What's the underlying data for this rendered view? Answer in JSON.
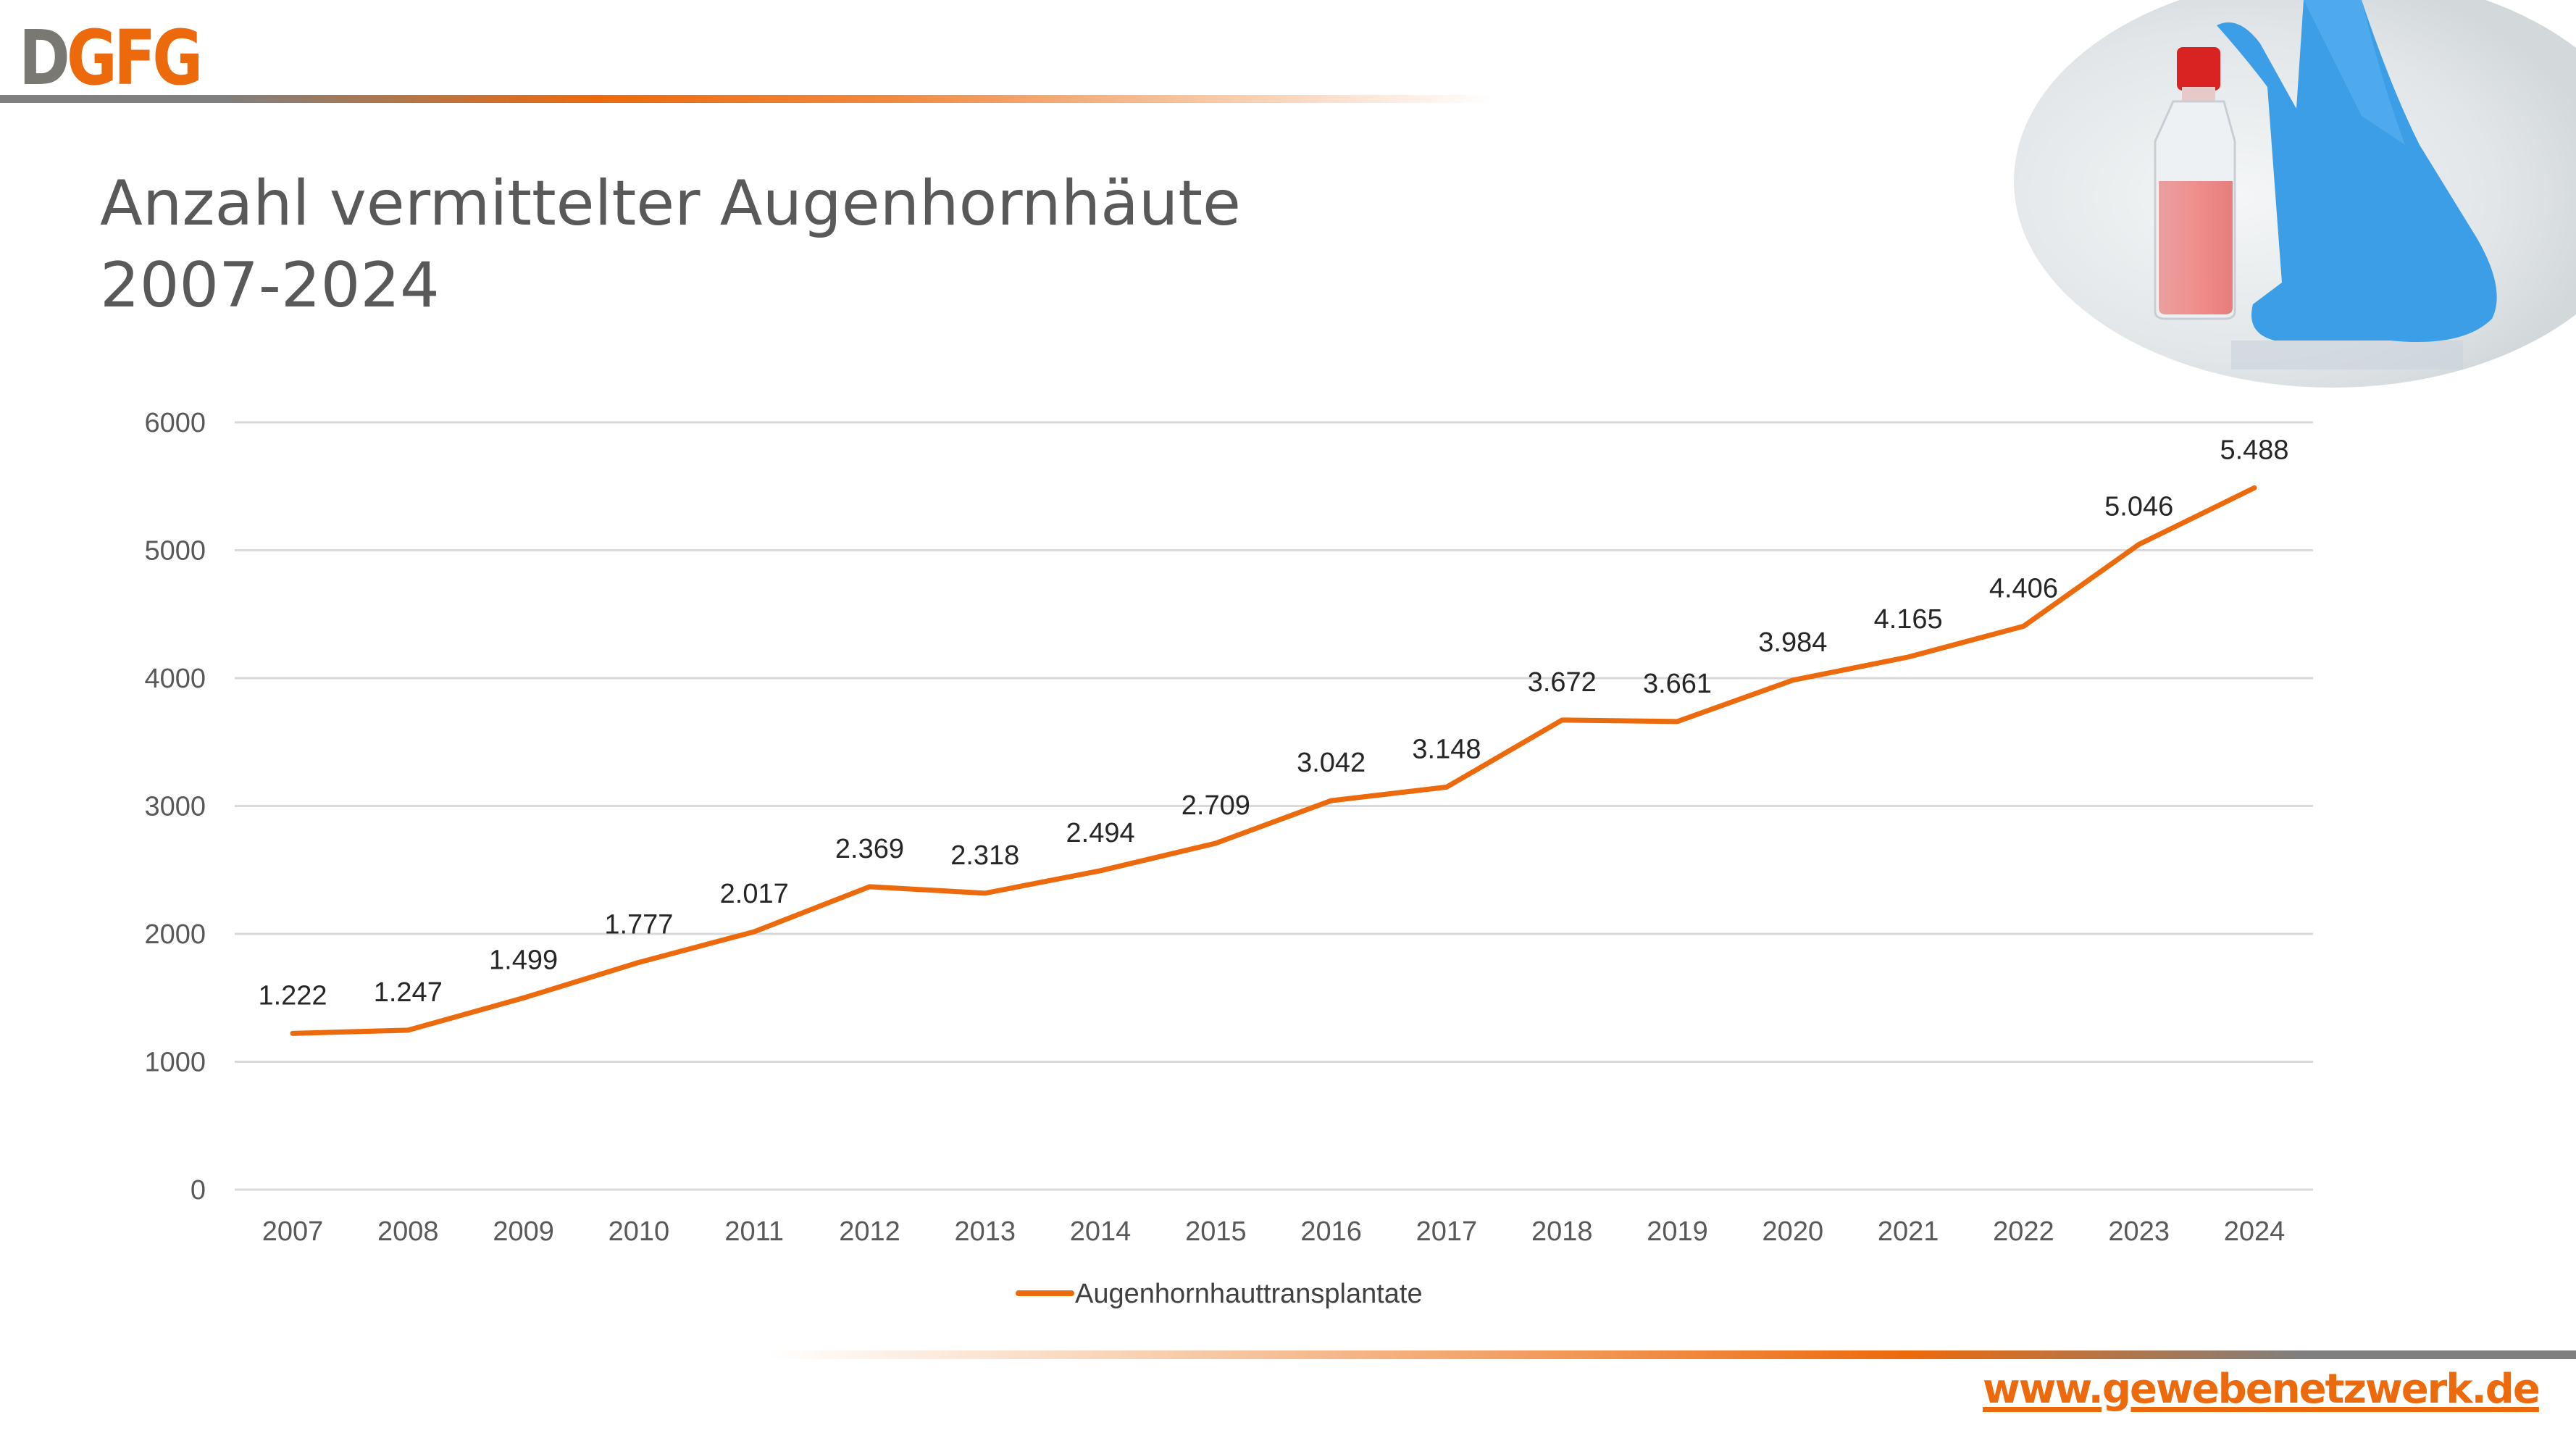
{
  "header": {
    "logo_text": "DGFG",
    "title_lines": [
      "Anzahl vermittelter Augenhornhäute",
      "2007-2024"
    ]
  },
  "footer": {
    "url": "www.gewebenetzwerk.de"
  },
  "photo": {
    "icon": "gloved-hand-holding-cell-culture-flask-image"
  },
  "colors": {
    "accent": "#ec6a0c",
    "gray": "#7f7f7f",
    "grid": "#d9d9d9"
  },
  "chart_data": {
    "type": "line",
    "title": "Anzahl vermittelter Augenhornhäute 2007-2024",
    "categories": [
      "2007",
      "2008",
      "2009",
      "2010",
      "2011",
      "2012",
      "2013",
      "2014",
      "2015",
      "2016",
      "2017",
      "2018",
      "2019",
      "2020",
      "2021",
      "2022",
      "2023",
      "2024"
    ],
    "series": [
      {
        "name": "Augenhornhauttransplantate",
        "color": "#ec6a0c",
        "values": [
          1222,
          1247,
          1499,
          1777,
          2017,
          2369,
          2318,
          2494,
          2709,
          3042,
          3148,
          3672,
          3661,
          3984,
          4165,
          4406,
          5046,
          5488
        ],
        "labels": [
          "1.222",
          "1.247",
          "1.499",
          "1.777",
          "2.017",
          "2.369",
          "2.318",
          "2.494",
          "2.709",
          "3.042",
          "3.148",
          "3.672",
          "3.661",
          "3.984",
          "4.165",
          "4.406",
          "5.046",
          "5.488"
        ]
      }
    ],
    "y_ticks": [
      "0",
      "1000",
      "2000",
      "3000",
      "4000",
      "5000",
      "6000"
    ],
    "ylim": [
      0,
      6000
    ],
    "grid": true,
    "legend": "bottom"
  }
}
